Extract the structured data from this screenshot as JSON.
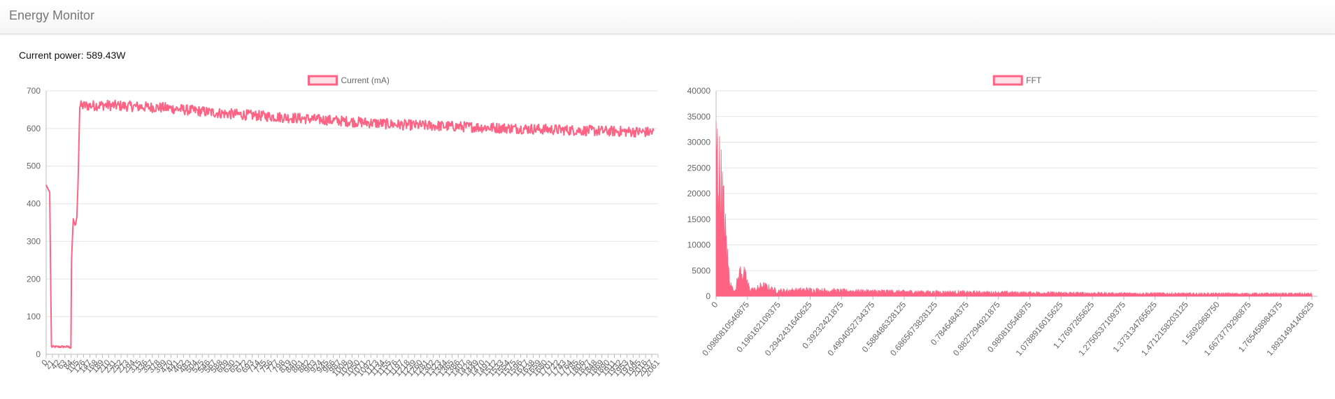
{
  "app": {
    "title": "Energy Monitor"
  },
  "status": {
    "label": "Current power:",
    "value": "589.43W"
  },
  "colors": {
    "series": "#ff6384",
    "series_fill": "rgba(255,99,132,0.2)",
    "grid": "#e5e5e5",
    "axis": "#666666"
  },
  "chart_data": [
    {
      "type": "line",
      "legend": "Current (mA)",
      "legend_position": "top",
      "grid": true,
      "ylim": [
        0,
        700
      ],
      "yticks": [
        0,
        100,
        200,
        300,
        400,
        500,
        600,
        700
      ],
      "x": {
        "start": 0,
        "end": 2061,
        "count": 2062,
        "tick_labels": [
          "0",
          "21",
          "42",
          "63",
          "84",
          "105",
          "126",
          "147",
          "168",
          "189",
          "210",
          "231",
          "252",
          "273",
          "294",
          "315",
          "336",
          "357",
          "378",
          "399",
          "420",
          "441",
          "462",
          "483",
          "504",
          "525",
          "546",
          "567",
          "588",
          "609",
          "630",
          "651",
          "672",
          "693",
          "714",
          "735",
          "756",
          "777",
          "798",
          "819",
          "840",
          "861",
          "882",
          "903",
          "924",
          "945",
          "966",
          "987",
          "1008",
          "1029",
          "1050",
          "1071",
          "1092",
          "1113",
          "1134",
          "1155",
          "1176",
          "1197",
          "1218",
          "1239",
          "1260",
          "1281",
          "1302",
          "1323",
          "1344",
          "1365",
          "1386",
          "1407",
          "1428",
          "1449",
          "1470",
          "1491",
          "1512",
          "1533",
          "1554",
          "1575",
          "1596",
          "1617",
          "1638",
          "1659",
          "1680",
          "1701",
          "1722",
          "1743",
          "1764",
          "1785",
          "1806",
          "1827",
          "1848",
          "1869",
          "1890",
          "1911",
          "1932",
          "1953",
          "1974",
          "1995",
          "2016",
          "2037",
          "2061"
        ]
      },
      "series": [
        {
          "name": "Current (mA)",
          "points": [
            [
              0,
              450
            ],
            [
              12,
              430
            ],
            [
              18,
              20
            ],
            [
              40,
              20
            ],
            [
              70,
              20
            ],
            [
              85,
              18
            ],
            [
              86,
              250
            ],
            [
              92,
              360
            ],
            [
              99,
              340
            ],
            [
              104,
              365
            ],
            [
              108,
              450
            ],
            [
              114,
              660
            ],
            [
              200,
              662
            ],
            [
              400,
              655
            ],
            [
              600,
              640
            ],
            [
              800,
              630
            ],
            [
              1000,
              620
            ],
            [
              1200,
              610
            ],
            [
              1400,
              605
            ],
            [
              1600,
              600
            ],
            [
              1800,
              595
            ],
            [
              2061,
              590
            ]
          ],
          "noise": 14
        }
      ]
    },
    {
      "type": "area",
      "legend": "FFT",
      "legend_position": "top",
      "grid": true,
      "ylim": [
        0,
        40000
      ],
      "yticks": [
        0,
        5000,
        10000,
        15000,
        20000,
        25000,
        30000,
        35000,
        40000
      ],
      "x": {
        "start": 0,
        "end": 1.961,
        "tick_labels": [
          "0",
          "0.0980810546875",
          "0.196162109375",
          "0.2942431640625",
          "0.39232421875",
          "0.4904052734375",
          "0.588486328125",
          "0.6865673828125",
          "0.7846484375",
          "0.8827294921875",
          "0.980810546875",
          "1.0788916015625",
          "1.17697265625",
          "1.2750537109375",
          "1.373134765625",
          "1.4712158203125",
          "1.5692968750",
          "1.6673779296875",
          "1.765458984375",
          "1.8931494140625"
        ]
      },
      "series": [
        {
          "name": "FFT",
          "envelope": [
            [
              0,
              39500
            ],
            [
              0.005,
              38000
            ],
            [
              0.01,
              34000
            ],
            [
              0.02,
              28000
            ],
            [
              0.03,
              18000
            ],
            [
              0.04,
              8000
            ],
            [
              0.05,
              2500
            ],
            [
              0.06,
              1500
            ],
            [
              0.07,
              4000
            ],
            [
              0.08,
              6800
            ],
            [
              0.09,
              6500
            ],
            [
              0.1,
              4500
            ],
            [
              0.11,
              2000
            ],
            [
              0.13,
              1800
            ],
            [
              0.15,
              3000
            ],
            [
              0.17,
              2500
            ],
            [
              0.2,
              1500
            ],
            [
              0.3,
              1800
            ],
            [
              0.4,
              1500
            ],
            [
              0.5,
              1400
            ],
            [
              0.7,
              1200
            ],
            [
              1.0,
              1000
            ],
            [
              1.3,
              800
            ],
            [
              1.6,
              700
            ],
            [
              1.961,
              700
            ]
          ]
        }
      ]
    }
  ]
}
